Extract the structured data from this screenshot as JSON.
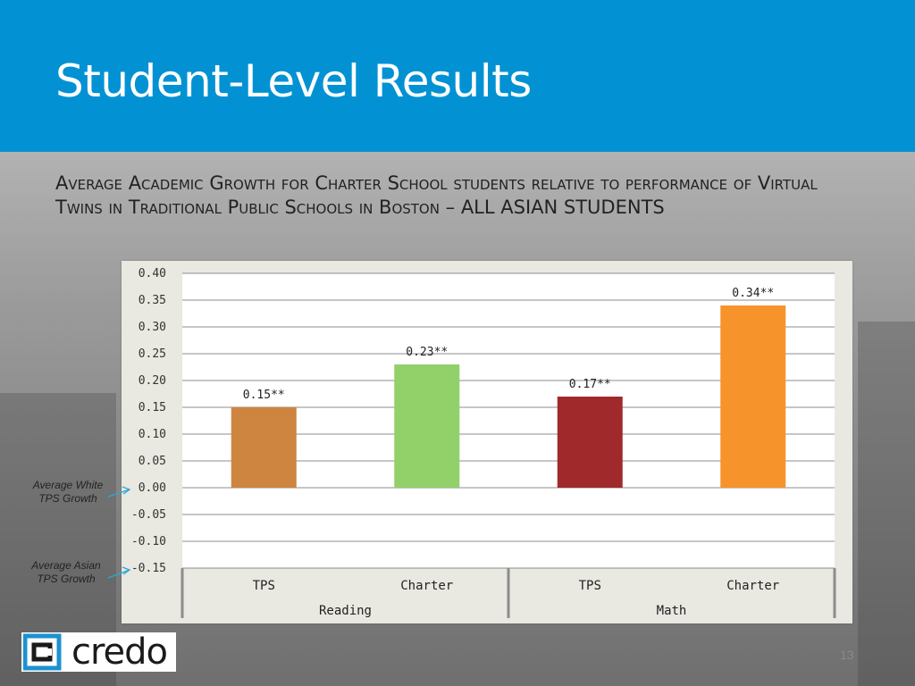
{
  "slide": {
    "title": "Student-Level Results",
    "subtitle": "Average Academic Growth for Charter School students relative to performance of Virtual Twins in Traditional Public Schools in Boston – ALL ASIAN STUDENTS",
    "page_number": "13",
    "logo_text": "credo",
    "header_color": "#0292d3"
  },
  "annotations": {
    "white_tps": "Average White TPS Growth",
    "asian_tps": "Average Asian TPS Growth",
    "arrow_color": "#2aa7d8"
  },
  "chart_data": {
    "type": "bar",
    "title": "",
    "xlabel": "",
    "ylabel": "",
    "ylim": [
      -0.15,
      0.4
    ],
    "yticks": [
      "0.40",
      "0.35",
      "0.30",
      "0.25",
      "0.20",
      "0.15",
      "0.10",
      "0.05",
      "0.00",
      "-0.05",
      "-0.10",
      "-0.15"
    ],
    "grid": true,
    "groups": [
      {
        "name": "Reading",
        "categories": [
          "TPS",
          "Charter"
        ]
      },
      {
        "name": "Math",
        "categories": [
          "TPS",
          "Charter"
        ]
      }
    ],
    "categories": [
      "TPS",
      "Charter",
      "TPS",
      "Charter"
    ],
    "values": [
      0.15,
      0.23,
      0.17,
      0.34
    ],
    "labels": [
      "0.15**",
      "0.23**",
      "0.17**",
      "0.34**"
    ],
    "colors": [
      "#cd853f",
      "#92d06a",
      "#a0292b",
      "#f7932b"
    ]
  }
}
